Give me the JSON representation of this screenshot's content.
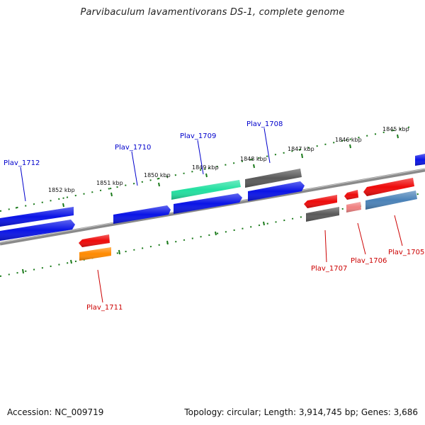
{
  "title": "Parvibaculum lavamentivorans DS-1, complete genome",
  "colors": {
    "backbone": "#8a8a8a",
    "tick": "#1a7a1a",
    "label_fwd": "#0000cc",
    "label_rev": "#cc0000",
    "blue": "#0a14e6",
    "red": "#ee0a0a",
    "gray": "#5a5a5a",
    "green": "#22e0a0",
    "orange": "#ff8a00",
    "pink": "#f08080",
    "steel": "#4a82b8"
  },
  "kbp_ticks": [
    "1852 kbp",
    "1851 kbp",
    "1850 kbp",
    "1849 kbp",
    "1848 kbp",
    "1847 kbp",
    "1846 kbp",
    "1845 kbp"
  ],
  "labels": {
    "fwd": [
      "Plav_1712",
      "Plav_1710",
      "Plav_1709",
      "Plav_1708"
    ],
    "rev": [
      "Plav_1711",
      "Plav_1707",
      "Plav_1706",
      "Plav_1705"
    ]
  },
  "footer": {
    "accession": "Accession: NC_009719",
    "topology": "Topology: circular;",
    "length": "Length: 3,914,745 bp;",
    "genes": "Genes: 3,686"
  }
}
